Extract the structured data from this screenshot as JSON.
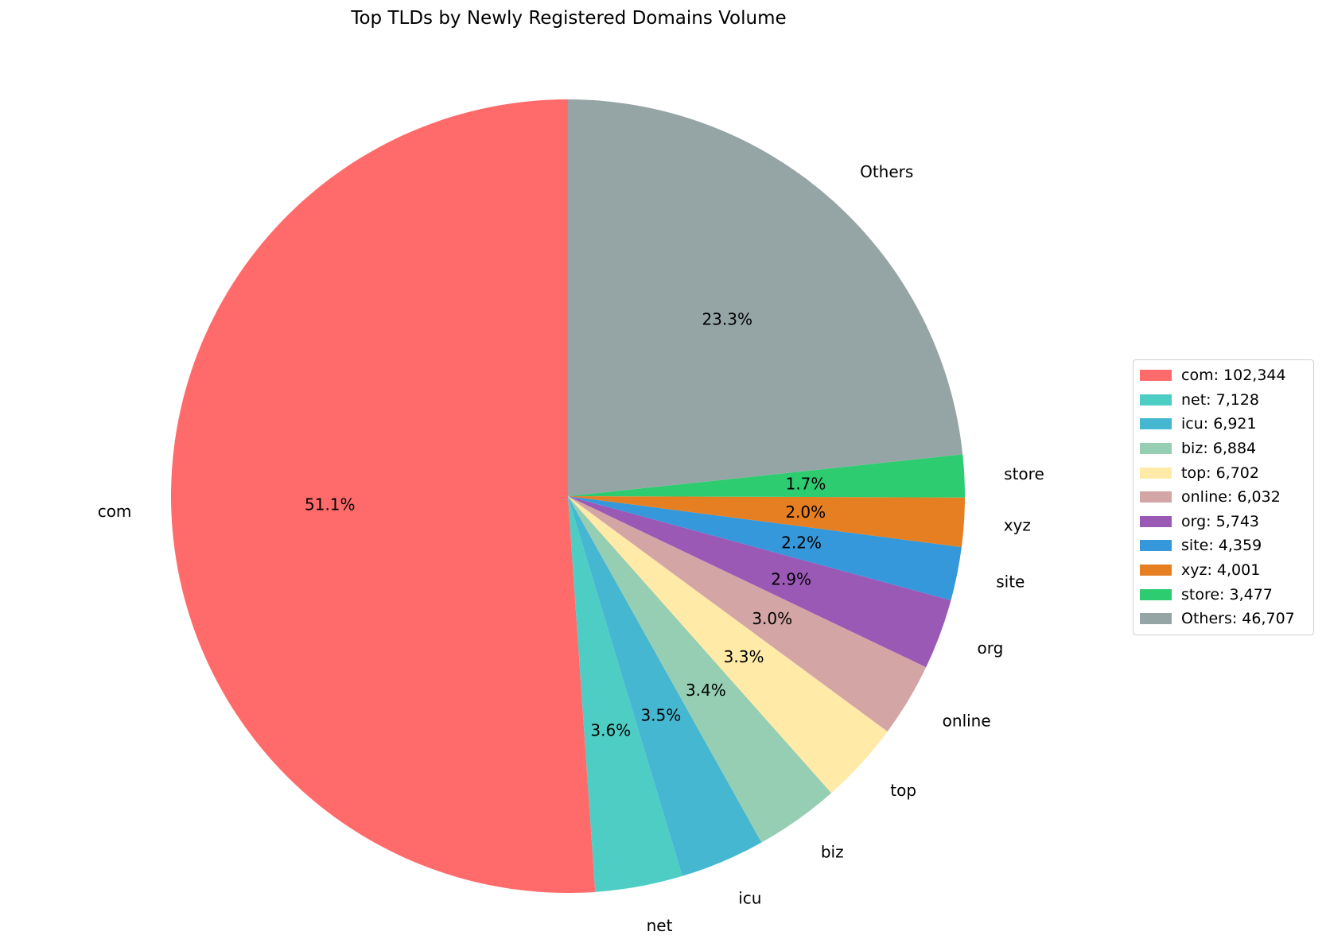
{
  "chart_data": {
    "type": "pie",
    "title": "Top TLDs by Newly Registered Domains Volume",
    "slices": [
      {
        "label": "com",
        "value": 102344,
        "percent": 51.1,
        "pct_text": "51.1%",
        "legend_text": "com: 102,344",
        "color": "#ff6b6b"
      },
      {
        "label": "net",
        "value": 7128,
        "percent": 3.6,
        "pct_text": "3.6%",
        "legend_text": "net: 7,128",
        "color": "#4ecdc4"
      },
      {
        "label": "icu",
        "value": 6921,
        "percent": 3.5,
        "pct_text": "3.5%",
        "legend_text": "icu: 6,921",
        "color": "#45b7d1"
      },
      {
        "label": "biz",
        "value": 6884,
        "percent": 3.4,
        "pct_text": "3.4%",
        "legend_text": "biz: 6,884",
        "color": "#96ceb4"
      },
      {
        "label": "top",
        "value": 6702,
        "percent": 3.3,
        "pct_text": "3.3%",
        "legend_text": "top: 6,702",
        "color": "#ffeaa7"
      },
      {
        "label": "online",
        "value": 6032,
        "percent": 3.0,
        "pct_text": "3.0%",
        "legend_text": "online: 6,032",
        "color": "#d4a5a5"
      },
      {
        "label": "org",
        "value": 5743,
        "percent": 2.9,
        "pct_text": "2.9%",
        "legend_text": "org: 5,743",
        "color": "#9b59b6"
      },
      {
        "label": "site",
        "value": 4359,
        "percent": 2.2,
        "pct_text": "2.2%",
        "legend_text": "site: 4,359",
        "color": "#3498db"
      },
      {
        "label": "xyz",
        "value": 4001,
        "percent": 2.0,
        "pct_text": "2.0%",
        "legend_text": "xyz: 4,001",
        "color": "#e67e22"
      },
      {
        "label": "store",
        "value": 3477,
        "percent": 1.7,
        "pct_text": "1.7%",
        "legend_text": "store: 3,477",
        "color": "#2ecc71"
      },
      {
        "label": "Others",
        "value": 46707,
        "percent": 23.3,
        "pct_text": "23.3%",
        "legend_text": "Others: 46,707",
        "color": "#95a5a6"
      }
    ],
    "start_angle": "top (12 o'clock)",
    "direction": "counterclockwise",
    "legend_position": "right"
  }
}
